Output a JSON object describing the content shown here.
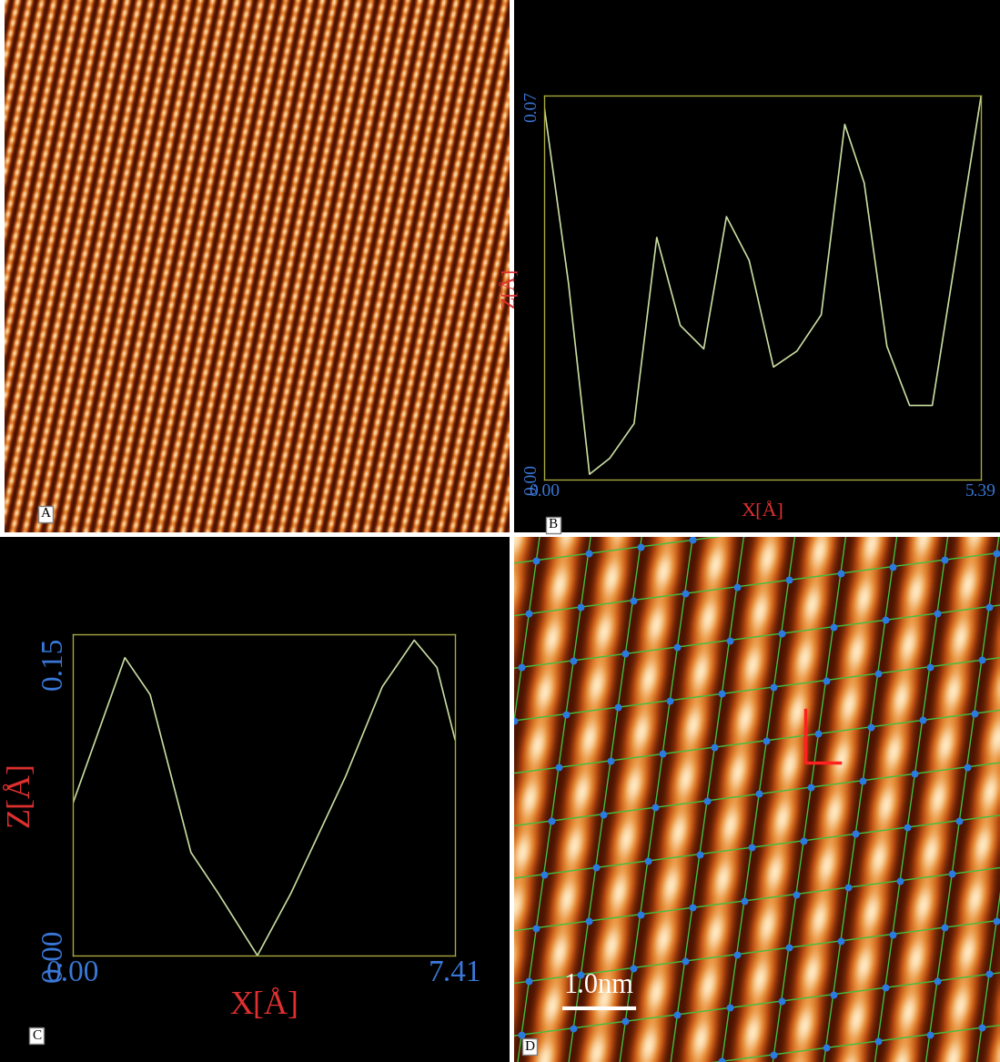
{
  "chart_data": [
    {
      "type": "image",
      "panel": "A"
    },
    {
      "type": "line",
      "panel": "B",
      "x": [
        0.0,
        0.3,
        0.56,
        0.81,
        1.11,
        1.39,
        1.68,
        1.97,
        2.25,
        2.53,
        2.83,
        3.12,
        3.42,
        3.71,
        3.95,
        4.23,
        4.51,
        4.79,
        5.39
      ],
      "values": [
        0.07,
        0.0369,
        0.001,
        0.004,
        0.0105,
        0.0454,
        0.0289,
        0.0245,
        0.0493,
        0.0411,
        0.0211,
        0.0241,
        0.0309,
        0.0666,
        0.0556,
        0.025,
        0.0139,
        0.0139,
        0.0717
      ],
      "xlabel": "X[Å]",
      "ylabel": "Z[Å]",
      "xlim": [
        0,
        5.39
      ],
      "ylim": [
        0,
        0.072
      ],
      "xticks": [
        {
          "value": 0,
          "label": "0.00"
        },
        {
          "value": 5.39,
          "label": "5.39"
        }
      ],
      "yticks": [
        {
          "value": 0,
          "label": "0.00"
        },
        {
          "value": 0.07,
          "label": "0.07"
        }
      ],
      "color": "#c8dca0"
    },
    {
      "type": "line",
      "panel": "C",
      "x": [
        0.0,
        1.01,
        1.5,
        2.29,
        2.82,
        3.58,
        4.23,
        5.29,
        6.0,
        6.62,
        7.06,
        7.41
      ],
      "values": [
        0.078,
        0.153,
        0.134,
        0.053,
        0.032,
        0.0,
        0.032,
        0.092,
        0.138,
        0.162,
        0.148,
        0.111
      ],
      "xlabel": "X[Å]",
      "ylabel": "Z[Å]",
      "xlim": [
        0,
        7.41
      ],
      "ylim": [
        0,
        0.165
      ],
      "xticks": [
        {
          "value": 0,
          "label": "0.00"
        },
        {
          "value": 7.41,
          "label": "7.41"
        }
      ],
      "yticks": [
        {
          "value": 0,
          "label": "0.00"
        },
        {
          "value": 0.15,
          "label": "0.15"
        }
      ],
      "color": "#c8dca0"
    },
    {
      "type": "image",
      "panel": "D",
      "scale_bar": "1.0nm"
    }
  ]
}
